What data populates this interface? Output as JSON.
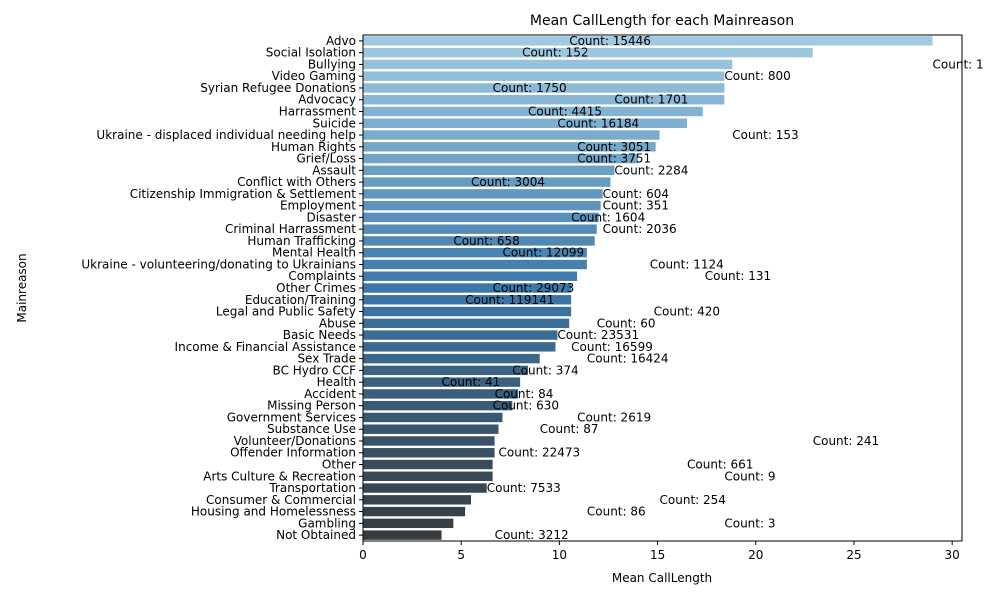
{
  "chart_data": {
    "type": "bar",
    "orientation": "horizontal",
    "title": "Mean CallLength for each Mainreason",
    "xlabel": "Mean CallLength",
    "ylabel": "Mainreason",
    "xlim": [
      0,
      30.5
    ],
    "xticks": [
      "0",
      "5",
      "10",
      "15",
      "20",
      "25",
      "30"
    ],
    "grid": false,
    "palette": "Blues_d (light blue at top to dark slate at bottom)",
    "categories": [
      "Advo",
      "Social Isolation",
      "Bullying",
      "Video Gaming",
      "Syrian Refugee Donations",
      "Advocacy",
      "Harrassment",
      "Suicide",
      "Ukraine - displaced individual needing help",
      "Human Rights",
      "Grief/Loss",
      "Assault",
      "Conflict with Others",
      "Citizenship Immigration & Settlement",
      "Employment",
      "Disaster",
      "Criminal Harrassment",
      "Human Trafficking",
      "Mental Health",
      "Ukraine - volunteering/donating to Ukrainians",
      "Complaints",
      "Other Crimes",
      "Education/Training",
      "Legal and Public Safety",
      "Abuse",
      "Basic Needs",
      "Income & Financial Assistance",
      "Sex Trade",
      "BC Hydro CCF",
      "Health",
      "Accident",
      "Missing Person",
      "Government Services",
      "Substance Use",
      "Volunteer/Donations",
      "Offender Information",
      "Other",
      "Arts Culture & Recreation",
      "Transportation",
      "Consumer & Commercial",
      "Housing and Homelessness",
      "Gambling",
      "Not Obtained"
    ],
    "values": [
      29.0,
      22.9,
      18.8,
      18.4,
      18.4,
      18.4,
      17.3,
      16.5,
      15.1,
      14.9,
      14.0,
      12.8,
      12.6,
      12.2,
      12.1,
      12.0,
      11.9,
      11.8,
      11.4,
      11.4,
      10.9,
      10.6,
      10.6,
      10.6,
      10.5,
      9.9,
      9.8,
      9.0,
      8.4,
      8.0,
      7.9,
      7.6,
      7.1,
      6.9,
      6.7,
      6.7,
      6.6,
      6.6,
      6.3,
      5.5,
      5.2,
      4.6,
      4.0
    ],
    "annotations": [
      {
        "text": "Count: 15446",
        "x": 10.5
      },
      {
        "text": "Count: 152",
        "x": 8.1
      },
      {
        "text": "Count: 1",
        "x": 29.0
      },
      {
        "text": "Count: 800",
        "x": 18.4
      },
      {
        "text": "Count: 1750",
        "x": 6.6
      },
      {
        "text": "Count: 1701",
        "x": 12.8
      },
      {
        "text": "Count: 4415",
        "x": 8.4
      },
      {
        "text": "Count: 16184",
        "x": 9.9
      },
      {
        "text": "Count: 153",
        "x": 18.8
      },
      {
        "text": "Count: 3051",
        "x": 10.9
      },
      {
        "text": "Count: 3751",
        "x": 10.9
      },
      {
        "text": "Count: 2284",
        "x": 12.8
      },
      {
        "text": "Count: 3004",
        "x": 5.5
      },
      {
        "text": "Count: 604",
        "x": 12.2
      },
      {
        "text": "Count: 351",
        "x": 12.2
      },
      {
        "text": "Count: 1604",
        "x": 10.6
      },
      {
        "text": "Count: 2036",
        "x": 12.2
      },
      {
        "text": "Count: 658",
        "x": 4.6
      },
      {
        "text": "Count: 12099",
        "x": 7.1
      },
      {
        "text": "Count: 1124",
        "x": 14.6
      },
      {
        "text": "Count: 131",
        "x": 17.4
      },
      {
        "text": "Count: 29073",
        "x": 6.6
      },
      {
        "text": "Count: 119141",
        "x": 5.2
      },
      {
        "text": "Count: 420",
        "x": 14.8
      },
      {
        "text": "Count: 60",
        "x": 11.9
      },
      {
        "text": "Count: 23531",
        "x": 9.9
      },
      {
        "text": "Count: 16599",
        "x": 10.6
      },
      {
        "text": "Count: 16424",
        "x": 11.4
      },
      {
        "text": "Count: 374",
        "x": 7.6
      },
      {
        "text": "Count: 41",
        "x": 4.0
      },
      {
        "text": "Count: 84",
        "x": 6.7
      },
      {
        "text": "Count: 630",
        "x": 6.6
      },
      {
        "text": "Count: 2619",
        "x": 10.9
      },
      {
        "text": "Count: 87",
        "x": 9.0
      },
      {
        "text": "Count: 241",
        "x": 22.9
      },
      {
        "text": "Count: 22473",
        "x": 6.9
      },
      {
        "text": "Count: 661",
        "x": 16.5
      },
      {
        "text": "Count: 9",
        "x": 18.4
      },
      {
        "text": "Count: 7533",
        "x": 6.3
      },
      {
        "text": "Count: 254",
        "x": 15.1
      },
      {
        "text": "Count: 86",
        "x": 11.4
      },
      {
        "text": "Count: 3",
        "x": 18.4
      },
      {
        "text": "Count: 3212",
        "x": 6.7
      }
    ]
  }
}
